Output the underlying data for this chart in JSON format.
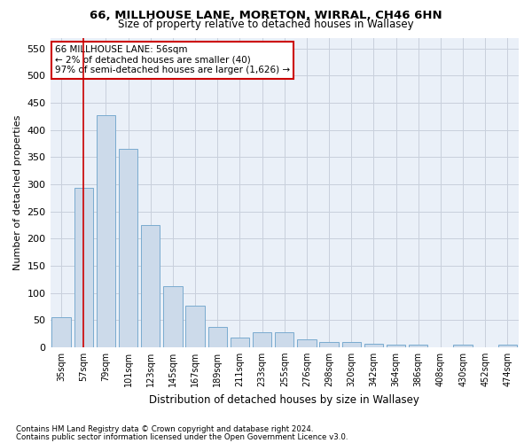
{
  "title": "66, MILLHOUSE LANE, MORETON, WIRRAL, CH46 6HN",
  "subtitle": "Size of property relative to detached houses in Wallasey",
  "xlabel": "Distribution of detached houses by size in Wallasey",
  "ylabel": "Number of detached properties",
  "categories": [
    "35sqm",
    "57sqm",
    "79sqm",
    "101sqm",
    "123sqm",
    "145sqm",
    "167sqm",
    "189sqm",
    "211sqm",
    "233sqm",
    "255sqm",
    "276sqm",
    "298sqm",
    "320sqm",
    "342sqm",
    "364sqm",
    "386sqm",
    "408sqm",
    "430sqm",
    "452sqm",
    "474sqm"
  ],
  "values": [
    55,
    293,
    428,
    366,
    225,
    113,
    76,
    38,
    17,
    27,
    27,
    15,
    10,
    10,
    7,
    5,
    5,
    0,
    5,
    0,
    4
  ],
  "bar_color": "#ccdaea",
  "bar_edge_color": "#7aabcf",
  "property_bin_index": 1,
  "annotation_title": "66 MILLHOUSE LANE: 56sqm",
  "annotation_line1": "← 2% of detached houses are smaller (40)",
  "annotation_line2": "97% of semi-detached houses are larger (1,626) →",
  "vline_color": "#cc0000",
  "annotation_box_color": "#cc0000",
  "ylim": [
    0,
    570
  ],
  "yticks": [
    0,
    50,
    100,
    150,
    200,
    250,
    300,
    350,
    400,
    450,
    500,
    550
  ],
  "footer_line1": "Contains HM Land Registry data © Crown copyright and database right 2024.",
  "footer_line2": "Contains public sector information licensed under the Open Government Licence v3.0.",
  "background_color": "#ffffff",
  "plot_bg_color": "#eaf0f8",
  "grid_color": "#c8d0dc"
}
